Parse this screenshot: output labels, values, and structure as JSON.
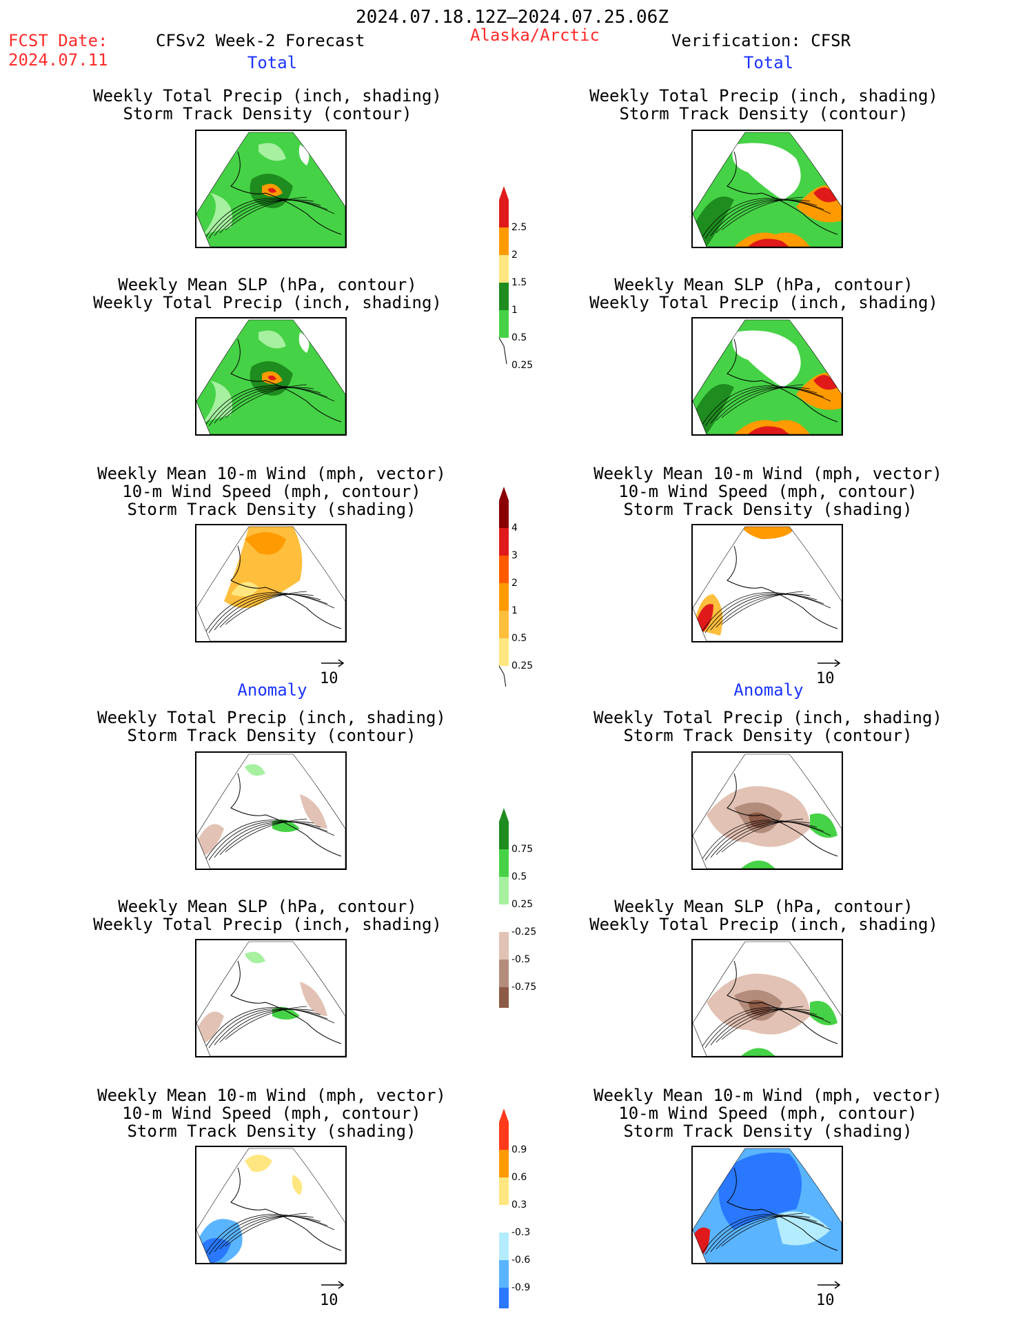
{
  "header": {
    "period": "2024.07.18.12Z–2024.07.25.06Z",
    "fcst_label": "FCST Date:",
    "fcst_date": "2024.07.11",
    "model": "CFSv2 Week-2 Forecast",
    "region": "Alaska/Arctic",
    "verification": "Verification: CFSR"
  },
  "sections": {
    "total": "Total",
    "anomaly": "Anomaly"
  },
  "titles": {
    "precip_storm": [
      "Weekly Total Precip (inch, shading)",
      "Storm Track Density (contour)"
    ],
    "slp_precip": [
      "Weekly Mean SLP (hPa, contour)",
      "Weekly Total Precip (inch, shading)"
    ],
    "wind_storm": [
      "Weekly Mean 10-m Wind (mph, vector)",
      "10-m Wind Speed (mph, contour)",
      "Storm Track Density (shading)"
    ]
  },
  "vector_reference": "10",
  "colorbars": {
    "total_precip": {
      "labels": [
        "2.5",
        "2",
        "1.5",
        "1",
        "0.5",
        "0.25"
      ],
      "colors": [
        "#e01a1a",
        "#ff9a00",
        "#ffe680",
        "#1e8c1e",
        "#46d246",
        "#a6f0a0"
      ]
    },
    "total_storm": {
      "labels": [
        "4",
        "3",
        "2",
        "1",
        "0.5",
        "0.25"
      ],
      "colors": [
        "#8a0000",
        "#e01a1a",
        "#ff5a00",
        "#ff9a00",
        "#ffbe3c",
        "#ffe680",
        "#fff8c0"
      ]
    },
    "anom_precip": {
      "labels": [
        "0.75",
        "0.5",
        "0.25",
        "-0.25",
        "-0.5",
        "-0.75"
      ],
      "colors": [
        "#1e8c1e",
        "#46d246",
        "#a6f0a0",
        "#ffffff",
        "#e2c2b4",
        "#b48c7c",
        "#8c5a46",
        "#5a3220"
      ]
    },
    "anom_storm": {
      "labels": [
        "0.9",
        "0.6",
        "0.3",
        "-0.3",
        "-0.6",
        "-0.9"
      ],
      "colors": [
        "#ff3a1a",
        "#ff9a00",
        "#ffe680",
        "#ffffff",
        "#b4ecff",
        "#5ab4ff",
        "#2a78ff",
        "#1a4ccc"
      ]
    }
  },
  "map_colors": {
    "ocean": "#ffffff",
    "precip_light": "#a6f0a0",
    "precip_mid": "#46d246",
    "precip_dark": "#1e8c1e",
    "precip_heavy": "#ff9a00",
    "precip_extreme": "#e01a1a",
    "storm_low": "#ffe680",
    "storm_mid": "#ffbe3c",
    "storm_high": "#ff9a00",
    "dry_light": "#e2c2b4",
    "dry_mid": "#b48c7c",
    "dry_dark": "#8c5a46",
    "neg_light": "#b4ecff",
    "neg_mid": "#5ab4ff",
    "neg_dark": "#2a78ff",
    "vector": "#5a5aff"
  }
}
